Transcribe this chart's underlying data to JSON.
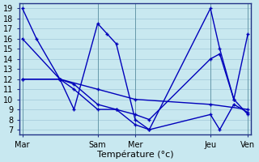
{
  "background_color": "#c8e8f0",
  "grid_color": "#a0c8d8",
  "line_color": "#0000bb",
  "xlabel": "Température (°c)",
  "xlim": [
    -0.1,
    8.1
  ],
  "ylim": [
    6.5,
    19.5
  ],
  "yticks": [
    7,
    8,
    9,
    10,
    11,
    12,
    13,
    14,
    15,
    16,
    17,
    18,
    19
  ],
  "xtick_positions": [
    0,
    2.67,
    4.0,
    6.67,
    8.0
  ],
  "xtick_labels": [
    "Mar",
    "Sam",
    "Mer",
    "Jeu",
    "Ven"
  ],
  "vline_positions": [
    0,
    2.67,
    4.0,
    6.67,
    8.0
  ],
  "s1_x": [
    0.0,
    0.5,
    1.33,
    1.83,
    2.67,
    3.0,
    3.33,
    4.0,
    4.5,
    6.67,
    7.0,
    7.5,
    8.0
  ],
  "s1_y": [
    19,
    16,
    12,
    9,
    17.5,
    16.5,
    15.5,
    8.0,
    7.0,
    19.0,
    15.0,
    10.0,
    16.5
  ],
  "s2_x": [
    0.0,
    1.33,
    1.83,
    2.67,
    3.33,
    4.0,
    4.5,
    6.67,
    7.0,
    7.5,
    8.0
  ],
  "s2_y": [
    16,
    12,
    11.5,
    9.5,
    9.0,
    8.5,
    8.0,
    14.0,
    14.5,
    10.0,
    8.5
  ],
  "s3_x": [
    0.0,
    1.33,
    1.83,
    2.67,
    3.33,
    4.0,
    4.5,
    6.67,
    7.0,
    7.5,
    8.0
  ],
  "s3_y": [
    12,
    12,
    11,
    9,
    9,
    7.5,
    7.0,
    8.5,
    7.0,
    9.5,
    8.7
  ],
  "s4_x": [
    0.0,
    1.33,
    2.67,
    4.0,
    6.67,
    8.0
  ],
  "s4_y": [
    12,
    12,
    11,
    10,
    9.5,
    9.0
  ]
}
